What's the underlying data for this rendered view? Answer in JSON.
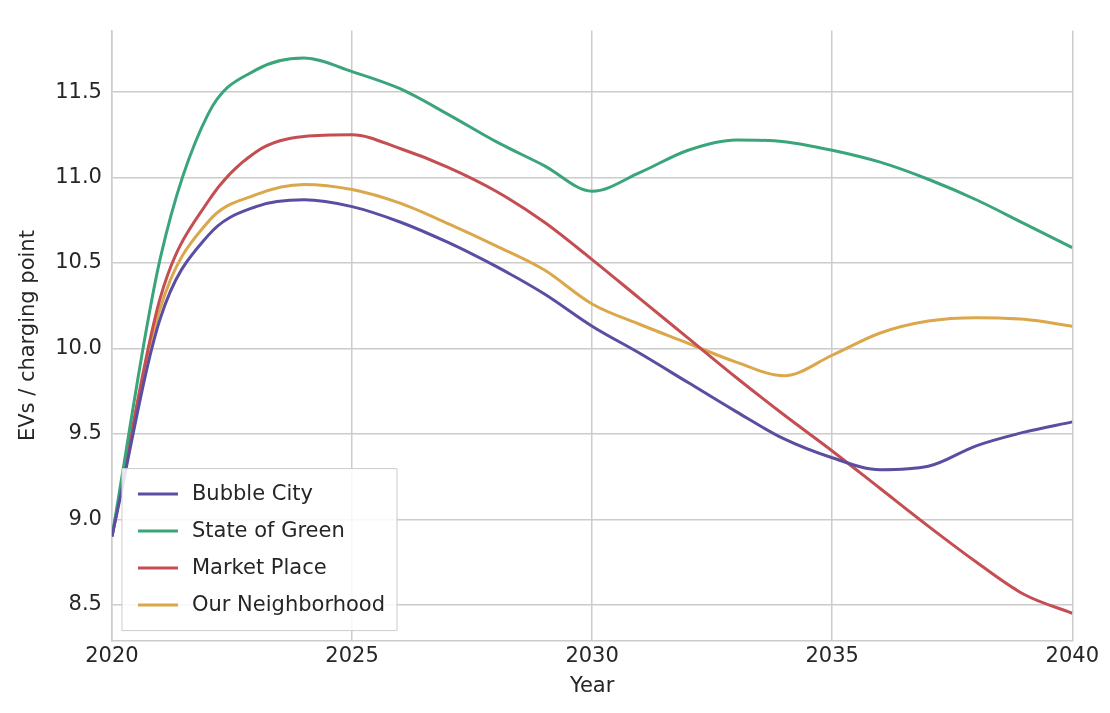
{
  "chart_data": {
    "type": "line",
    "xlabel": "Year",
    "ylabel": "EVs / charging point",
    "x": [
      2020,
      2021,
      2022,
      2023,
      2024,
      2025,
      2026,
      2027,
      2028,
      2029,
      2030,
      2031,
      2032,
      2033,
      2034,
      2035,
      2036,
      2037,
      2038,
      2039,
      2040
    ],
    "series": [
      {
        "name": "Bubble City",
        "color": "#5b4ea2",
        "values": [
          8.9,
          10.17,
          10.66,
          10.83,
          10.87,
          10.83,
          10.74,
          10.62,
          10.48,
          10.32,
          10.13,
          9.97,
          9.8,
          9.63,
          9.47,
          9.36,
          9.29,
          9.31,
          9.43,
          9.51,
          9.57
        ]
      },
      {
        "name": "State of Green",
        "color": "#3aa57a",
        "values": [
          8.9,
          10.52,
          11.37,
          11.63,
          11.7,
          11.62,
          11.52,
          11.37,
          11.21,
          11.07,
          10.92,
          11.03,
          11.16,
          11.22,
          11.21,
          11.16,
          11.09,
          10.99,
          10.87,
          10.73,
          10.59
        ]
      },
      {
        "name": "Market Place",
        "color": "#c44e52",
        "values": [
          8.9,
          10.29,
          10.86,
          11.15,
          11.24,
          11.25,
          11.17,
          11.06,
          10.92,
          10.74,
          10.52,
          10.29,
          10.06,
          9.83,
          9.61,
          9.4,
          9.18,
          8.96,
          8.75,
          8.56,
          8.45
        ]
      },
      {
        "name": "Our Neighborhood",
        "color": "#dba74b",
        "values": [
          8.9,
          10.23,
          10.74,
          10.9,
          10.96,
          10.93,
          10.85,
          10.73,
          10.6,
          10.46,
          10.26,
          10.14,
          10.03,
          9.92,
          9.84,
          9.96,
          10.09,
          10.16,
          10.18,
          10.17,
          10.13
        ]
      }
    ],
    "xlim": [
      2020,
      2040
    ],
    "xticks": [
      2020,
      2025,
      2030,
      2035,
      2040
    ],
    "ylim": [
      8.29,
      11.86
    ],
    "yticks": [
      8.5,
      {
        "value": 9,
        "label": "9.0"
      },
      9.5,
      {
        "value": 10,
        "label": "10.0"
      },
      10.5,
      {
        "value": 11,
        "label": "11.0"
      },
      11.5
    ],
    "grid": true,
    "legend": "bottom left",
    "marker": "none",
    "line_style": "solid"
  }
}
